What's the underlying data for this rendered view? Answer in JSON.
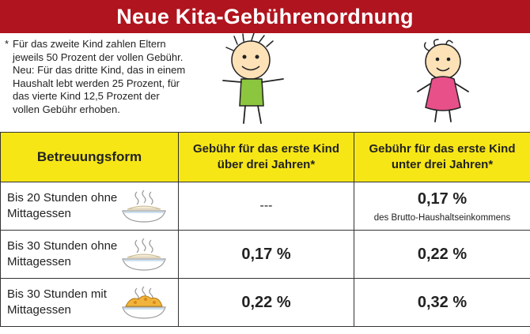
{
  "title": "Neue Kita-Gebührenordnung",
  "footnote": {
    "marker": "*",
    "text": "Für das zweite Kind zahlen Eltern jeweils 50 Prozent der vollen Gebühr. Neu: Für das dritte Kind, das in einem Haushalt lebt werden 25 Prozent, für das vierte Kind 12,5 Prozent der vollen Gebühr erhoben."
  },
  "illustrations": {
    "child_older": "child-over-three-icon",
    "child_younger": "child-under-three-icon",
    "bowl_plain": "empty-bowl-icon",
    "bowl_meal": "meal-bowl-icon"
  },
  "colors": {
    "banner": "#b0141e",
    "header": "#f6e616",
    "shirt_older": "#8cc63e",
    "dress_younger": "#e8508a"
  },
  "table": {
    "headers": [
      "Betreuungsform",
      "Gebühr für das erste Kind über drei Jahren*",
      "Gebühr für das erste Kind unter drei Jahren*"
    ],
    "rows": [
      {
        "form": "Bis 20 Stunden ohne Mittagessen",
        "over_three": "---",
        "under_three": "0,17 %",
        "under_three_note": "des Brutto-Haushaltseinkommens"
      },
      {
        "form": "Bis 30 Stunden ohne Mittagessen",
        "over_three": "0,17 %",
        "under_three": "0,22 %"
      },
      {
        "form": "Bis 30 Stunden mit Mittagessen",
        "over_three": "0,22 %",
        "under_three": "0,32 %"
      }
    ]
  }
}
